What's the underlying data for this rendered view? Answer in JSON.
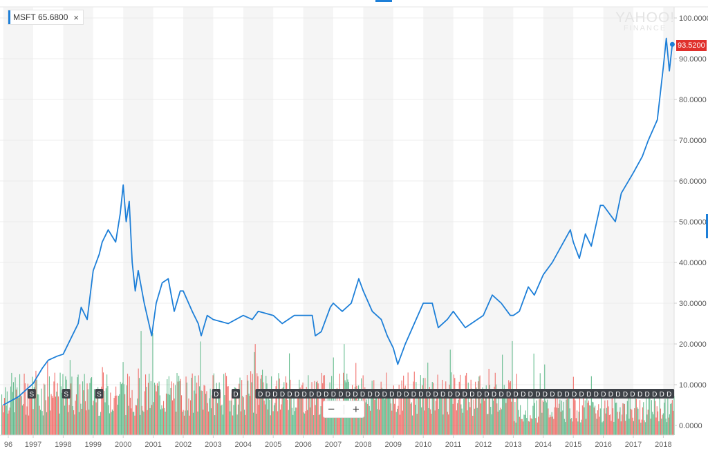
{
  "legend": {
    "symbol": "MSFT",
    "value": "65.6800",
    "close_icon": "×",
    "color": "#1d7fd8"
  },
  "watermark": {
    "line1": "YAHOO!",
    "line2": "FINANCE"
  },
  "current_price_label": "93.5200",
  "zoom_controls": {
    "zoom_out": "−",
    "zoom_in": "+"
  },
  "colors": {
    "line": "#1d7fd8",
    "volume_up": "#4fb37e",
    "volume_down": "#ee5a55",
    "price_tag": "#e0302c",
    "marker_bg": "#3d4147"
  },
  "chart_data": {
    "type": "line",
    "title": "",
    "xlabel": "",
    "ylabel": "",
    "x_tick_labels": [
      "96",
      "1997",
      "1998",
      "1999",
      "2000",
      "2001",
      "2002",
      "2003",
      "2004",
      "2005",
      "2006",
      "2007",
      "2008",
      "2009",
      "2010",
      "2011",
      "2012",
      "2013",
      "2014",
      "2015",
      "2016",
      "2017",
      "2018"
    ],
    "y_tick_labels": [
      "0.0000",
      "10.0000",
      "20.0000",
      "30.0000",
      "40.0000",
      "50.0000",
      "60.0000",
      "70.0000",
      "80.0000",
      "90.0000",
      "100.0000"
    ],
    "ylim": [
      0,
      100
    ],
    "xlim": [
      1995.9,
      2018.35
    ],
    "grid": true,
    "series": [
      {
        "name": "MSFT",
        "x": [
          1996.0,
          1996.5,
          1997.0,
          1997.3,
          1997.5,
          1997.8,
          1998.0,
          1998.3,
          1998.5,
          1998.6,
          1998.8,
          1999.0,
          1999.2,
          1999.3,
          1999.5,
          1999.75,
          1999.9,
          2000.0,
          2000.1,
          2000.2,
          2000.3,
          2000.4,
          2000.5,
          2000.7,
          2000.95,
          2001.1,
          2001.3,
          2001.5,
          2001.7,
          2001.9,
          2002.0,
          2002.3,
          2002.5,
          2002.6,
          2002.8,
          2003.0,
          2003.5,
          2004.0,
          2004.3,
          2004.5,
          2005.0,
          2005.3,
          2005.7,
          2006.0,
          2006.3,
          2006.4,
          2006.6,
          2006.9,
          2007.0,
          2007.3,
          2007.6,
          2007.85,
          2008.0,
          2008.3,
          2008.6,
          2008.8,
          2009.0,
          2009.15,
          2009.4,
          2009.7,
          2010.0,
          2010.3,
          2010.5,
          2010.8,
          2011.0,
          2011.4,
          2011.8,
          2012.0,
          2012.3,
          2012.6,
          2012.9,
          2013.0,
          2013.2,
          2013.5,
          2013.7,
          2014.0,
          2014.3,
          2014.6,
          2014.9,
          2015.0,
          2015.2,
          2015.4,
          2015.6,
          2015.9,
          2016.0,
          2016.2,
          2016.4,
          2016.6,
          2017.0,
          2017.3,
          2017.5,
          2017.8,
          2018.0,
          2018.1,
          2018.2,
          2018.3
        ],
        "y": [
          5,
          7,
          10.3,
          14,
          16,
          17,
          17.5,
          22,
          25,
          29,
          26,
          38,
          42,
          45,
          48,
          45,
          52,
          59,
          50,
          55,
          40,
          33,
          38,
          30,
          22,
          30,
          35,
          36,
          28,
          33,
          33,
          28,
          25,
          22,
          27,
          26,
          25,
          27,
          26,
          28,
          27,
          25,
          27,
          27,
          27,
          22,
          23,
          29,
          30,
          28,
          30,
          36,
          33,
          28,
          26,
          22,
          19,
          15,
          20,
          25,
          30,
          30,
          24,
          26,
          28,
          24,
          26,
          27,
          32,
          30,
          27,
          27,
          28,
          34,
          32,
          37,
          40,
          44,
          48,
          45,
          41,
          47,
          44,
          54,
          54,
          52,
          50,
          57,
          62,
          66,
          70,
          75,
          88,
          95,
          87,
          93.52
        ]
      }
    ],
    "events": {
      "splits": {
        "label": "S",
        "x": [
          1996.95,
          1998.1,
          1999.2
        ]
      },
      "dividends": {
        "label": "D",
        "x_first": [
          2003.1,
          2003.75
        ],
        "run_start": 2004.5,
        "run_end": 2018.2,
        "run_count": 57
      }
    }
  }
}
